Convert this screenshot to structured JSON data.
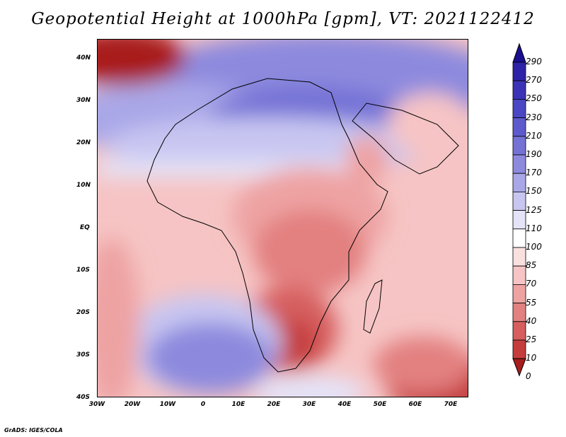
{
  "title": "Geopotential Height at 1000hPa [gpm], VT: 2021122412",
  "credit": "GrADS: IGES/COLA",
  "axes": {
    "y_labels": [
      "40N",
      "30N",
      "20N",
      "10N",
      "EQ",
      "10S",
      "20S",
      "30S",
      "40S"
    ],
    "x_labels": [
      "30W",
      "20W",
      "10W",
      "0",
      "10E",
      "20E",
      "30E",
      "40E",
      "50E",
      "60E",
      "70E"
    ]
  },
  "colorbar": {
    "labels": [
      "290",
      "270",
      "250",
      "230",
      "210",
      "190",
      "170",
      "150",
      "125",
      "110",
      "100",
      "85",
      "70",
      "55",
      "40",
      "25",
      "10",
      "0"
    ],
    "colors": [
      "#1a0f8f",
      "#2c23a8",
      "#3a33b8",
      "#4b46c4",
      "#5e5acd",
      "#7572d6",
      "#8d8ade",
      "#aaa7e8",
      "#c8c6f1",
      "#e4e3f8",
      "#ffffff",
      "#fbe0e0",
      "#f6c4c4",
      "#eea3a3",
      "#e38080",
      "#d65e5e",
      "#c53c3c",
      "#a81d1d"
    ]
  },
  "map": {
    "region": "Africa",
    "lat_range": [
      -40,
      45
    ],
    "lon_range": [
      -30,
      75
    ]
  }
}
